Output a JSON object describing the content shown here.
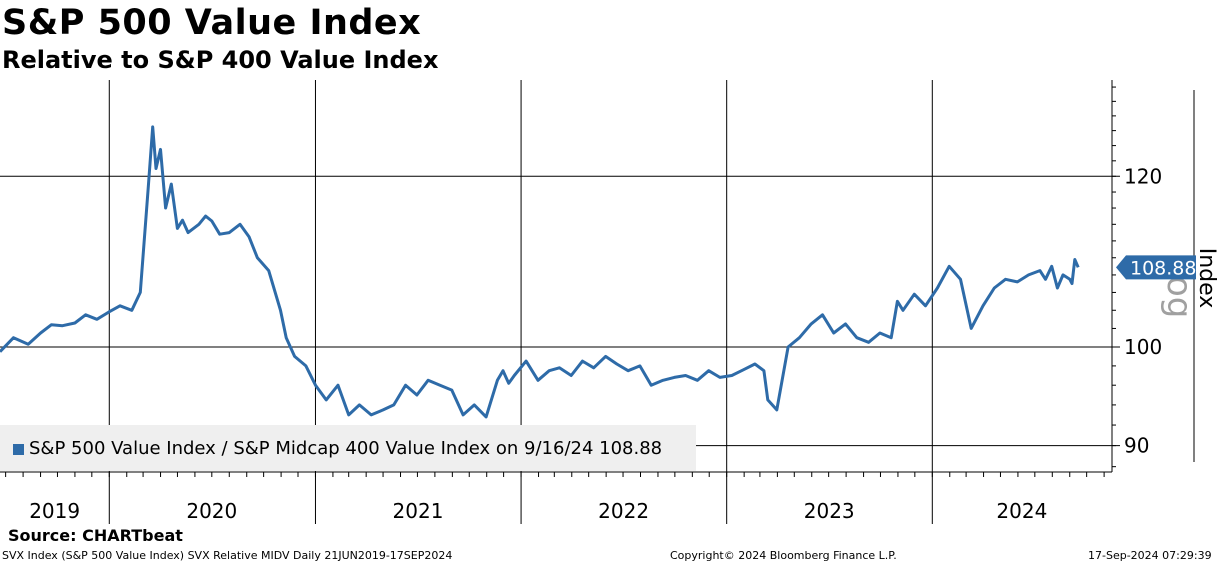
{
  "title": "S&P 500 Value Index",
  "subtitle": "Relative to S&P 400 Value Index",
  "source": "Source: CHARTbeat",
  "footer": {
    "left": "SVX Index (S&P 500 Value Index) SVX Relative MIDV  Daily 21JUN2019-17SEP2024",
    "center": "Copyright© 2024 Bloomberg Finance L.P.",
    "right": "17-Sep-2024 07:29:39"
  },
  "legend": {
    "label": "S&P 500 Value Index / S&P Midcap 400 Value Index on 9/16/24 108.88"
  },
  "colors": {
    "series": "#2e6ba8",
    "grid": "#000000",
    "background": "#ffffff"
  },
  "chart_data": {
    "type": "line",
    "title": "S&P 500 Value Index",
    "subtitle": "Relative to S&P 400 Value Index",
    "ylabel": "Index",
    "ylabel_secondary": "Log",
    "yscale": "log",
    "ylim": [
      87.5,
      133
    ],
    "yticks": [
      90,
      100,
      120
    ],
    "xlim": [
      "2019-06-21",
      "2024-11-15"
    ],
    "x_tick_labels": [
      "2019",
      "2020",
      "2021",
      "2022",
      "2023",
      "2024"
    ],
    "last_value_label": "108.88",
    "legend_position": "bottom-left",
    "grid": true,
    "series": [
      {
        "name": "S&P 500 Value Index / S&P Midcap 400 Value Index on 9/16/24",
        "x": [
          "2019-06-21",
          "2019-07-15",
          "2019-08-10",
          "2019-09-01",
          "2019-09-20",
          "2019-10-10",
          "2019-11-01",
          "2019-11-20",
          "2019-12-10",
          "2019-12-31",
          "2020-01-20",
          "2020-02-10",
          "2020-02-25",
          "2020-03-10",
          "2020-03-18",
          "2020-03-24",
          "2020-04-01",
          "2020-04-10",
          "2020-04-20",
          "2020-05-01",
          "2020-05-10",
          "2020-05-20",
          "2020-06-08",
          "2020-06-20",
          "2020-07-01",
          "2020-07-15",
          "2020-08-01",
          "2020-08-20",
          "2020-09-05",
          "2020-09-20",
          "2020-10-10",
          "2020-10-31",
          "2020-11-10",
          "2020-11-25",
          "2020-12-15",
          "2021-01-01",
          "2021-01-20",
          "2021-02-10",
          "2021-03-01",
          "2021-03-20",
          "2021-04-10",
          "2021-05-01",
          "2021-05-20",
          "2021-06-10",
          "2021-06-30",
          "2021-07-20",
          "2021-08-10",
          "2021-08-31",
          "2021-09-20",
          "2021-10-10",
          "2021-10-31",
          "2021-11-20",
          "2021-11-30",
          "2021-12-10",
          "2021-12-20",
          "2022-01-10",
          "2022-01-31",
          "2022-02-20",
          "2022-03-10",
          "2022-03-31",
          "2022-04-20",
          "2022-05-10",
          "2022-05-31",
          "2022-06-20",
          "2022-07-10",
          "2022-07-31",
          "2022-08-20",
          "2022-09-10",
          "2022-09-30",
          "2022-10-20",
          "2022-11-10",
          "2022-11-30",
          "2022-12-20",
          "2023-01-10",
          "2023-01-31",
          "2023-02-20",
          "2023-03-08",
          "2023-03-15",
          "2023-03-31",
          "2023-04-20",
          "2023-05-10",
          "2023-05-31",
          "2023-06-20",
          "2023-07-10",
          "2023-07-31",
          "2023-08-20",
          "2023-09-10",
          "2023-09-30",
          "2023-10-20",
          "2023-10-31",
          "2023-11-10",
          "2023-11-30",
          "2023-12-20",
          "2024-01-10",
          "2024-01-31",
          "2024-02-20",
          "2024-03-10",
          "2024-03-31",
          "2024-04-20",
          "2024-05-10",
          "2024-05-31",
          "2024-06-20",
          "2024-07-10",
          "2024-07-20",
          "2024-07-31",
          "2024-08-10",
          "2024-08-20",
          "2024-09-01",
          "2024-09-05",
          "2024-09-10",
          "2024-09-16"
        ],
        "y": [
          99.5,
          101.0,
          100.3,
          101.5,
          102.4,
          102.3,
          102.6,
          103.5,
          103.0,
          103.8,
          104.5,
          104.0,
          106.0,
          118.5,
          126.5,
          121.0,
          123.5,
          116.0,
          119.0,
          113.5,
          114.5,
          113.0,
          114.0,
          115.0,
          114.4,
          112.8,
          113.0,
          114.0,
          112.5,
          110.0,
          108.5,
          104.0,
          101.0,
          99.0,
          98.0,
          96.0,
          94.5,
          96.0,
          93.0,
          94.0,
          93.0,
          93.5,
          94.0,
          96.0,
          95.0,
          96.5,
          96.0,
          95.5,
          93.0,
          94.0,
          92.8,
          96.5,
          97.5,
          96.2,
          97.0,
          98.5,
          96.5,
          97.5,
          97.8,
          97.0,
          98.5,
          97.8,
          99.0,
          98.2,
          97.5,
          98.0,
          96.0,
          96.5,
          96.8,
          97.0,
          96.5,
          97.5,
          96.8,
          97.0,
          97.6,
          98.2,
          97.5,
          94.5,
          93.5,
          100.0,
          101.0,
          102.5,
          103.5,
          101.5,
          102.5,
          101.0,
          100.5,
          101.5,
          101.0,
          105.0,
          104.0,
          105.8,
          104.5,
          106.5,
          109.0,
          107.5,
          102.0,
          104.5,
          106.5,
          107.5,
          107.2,
          108.0,
          108.5,
          107.5,
          109.0,
          106.5,
          108.0,
          107.5,
          107.0,
          109.8,
          108.88
        ]
      }
    ]
  }
}
